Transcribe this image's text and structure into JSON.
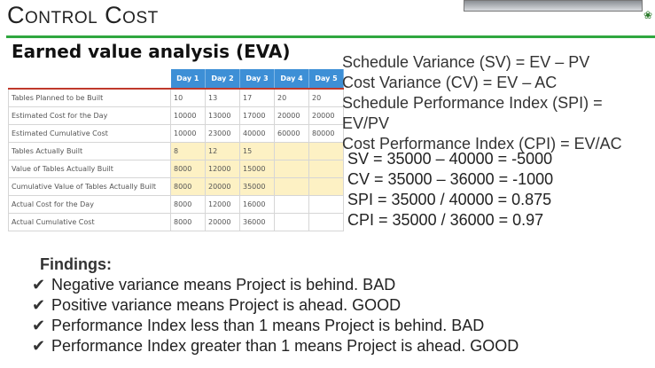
{
  "slide": {
    "title": "Control Cost",
    "subtitle": "Earned value analysis (EVA)"
  },
  "table": {
    "columns": [
      "Day 1",
      "Day 2",
      "Day 3",
      "Day 4",
      "Day 5"
    ],
    "rows": [
      {
        "label": "Tables Planned to be Built",
        "values": [
          "10",
          "13",
          "17",
          "20",
          "20"
        ],
        "highlight": false
      },
      {
        "label": "Estimated Cost for the Day",
        "values": [
          "10000",
          "13000",
          "17000",
          "20000",
          "20000"
        ],
        "highlight": false
      },
      {
        "label": "Estimated Cumulative Cost",
        "values": [
          "10000",
          "23000",
          "40000",
          "60000",
          "80000"
        ],
        "highlight": false
      },
      {
        "label": "Tables Actually Built",
        "values": [
          "8",
          "12",
          "15",
          "",
          ""
        ],
        "highlight": true
      },
      {
        "label": "Value of Tables Actually Built",
        "values": [
          "8000",
          "12000",
          "15000",
          "",
          ""
        ],
        "highlight": true
      },
      {
        "label": "Cumulative Value of Tables Actually Built",
        "values": [
          "8000",
          "20000",
          "35000",
          "",
          ""
        ],
        "highlight": true
      },
      {
        "label": "Actual Cost for the Day",
        "values": [
          "8000",
          "12000",
          "16000",
          "",
          ""
        ],
        "highlight": false
      },
      {
        "label": "Actual Cumulative Cost",
        "values": [
          "8000",
          "20000",
          "36000",
          "",
          ""
        ],
        "highlight": false
      }
    ],
    "header_color": "#3d8fd6",
    "highlight_color": "#fdf1c4"
  },
  "formulas": [
    "Schedule Variance (SV) = EV – PV",
    "Cost Variance (CV) = EV – AC",
    "Schedule Performance Index (SPI) =",
    "EV/PV",
    "Cost Performance Index (CPI) = EV/AC"
  ],
  "calculations": [
    "SV = 35000 – 40000 = -5000",
    "CV = 35000 – 36000 = -1000",
    "SPI = 35000 / 40000 = 0.875",
    "CPI = 35000 / 36000 = 0.97"
  ],
  "findings": {
    "title": "Findings:",
    "items": [
      "Negative variance means Project is behind. BAD",
      "Positive variance means Project is ahead. GOOD",
      "Performance Index less than 1 means Project is behind. BAD",
      "Performance Index greater than 1 means Project is ahead. GOOD"
    ],
    "bullet_icon": "check-icon"
  },
  "colors": {
    "rule": "#2fa73f"
  }
}
